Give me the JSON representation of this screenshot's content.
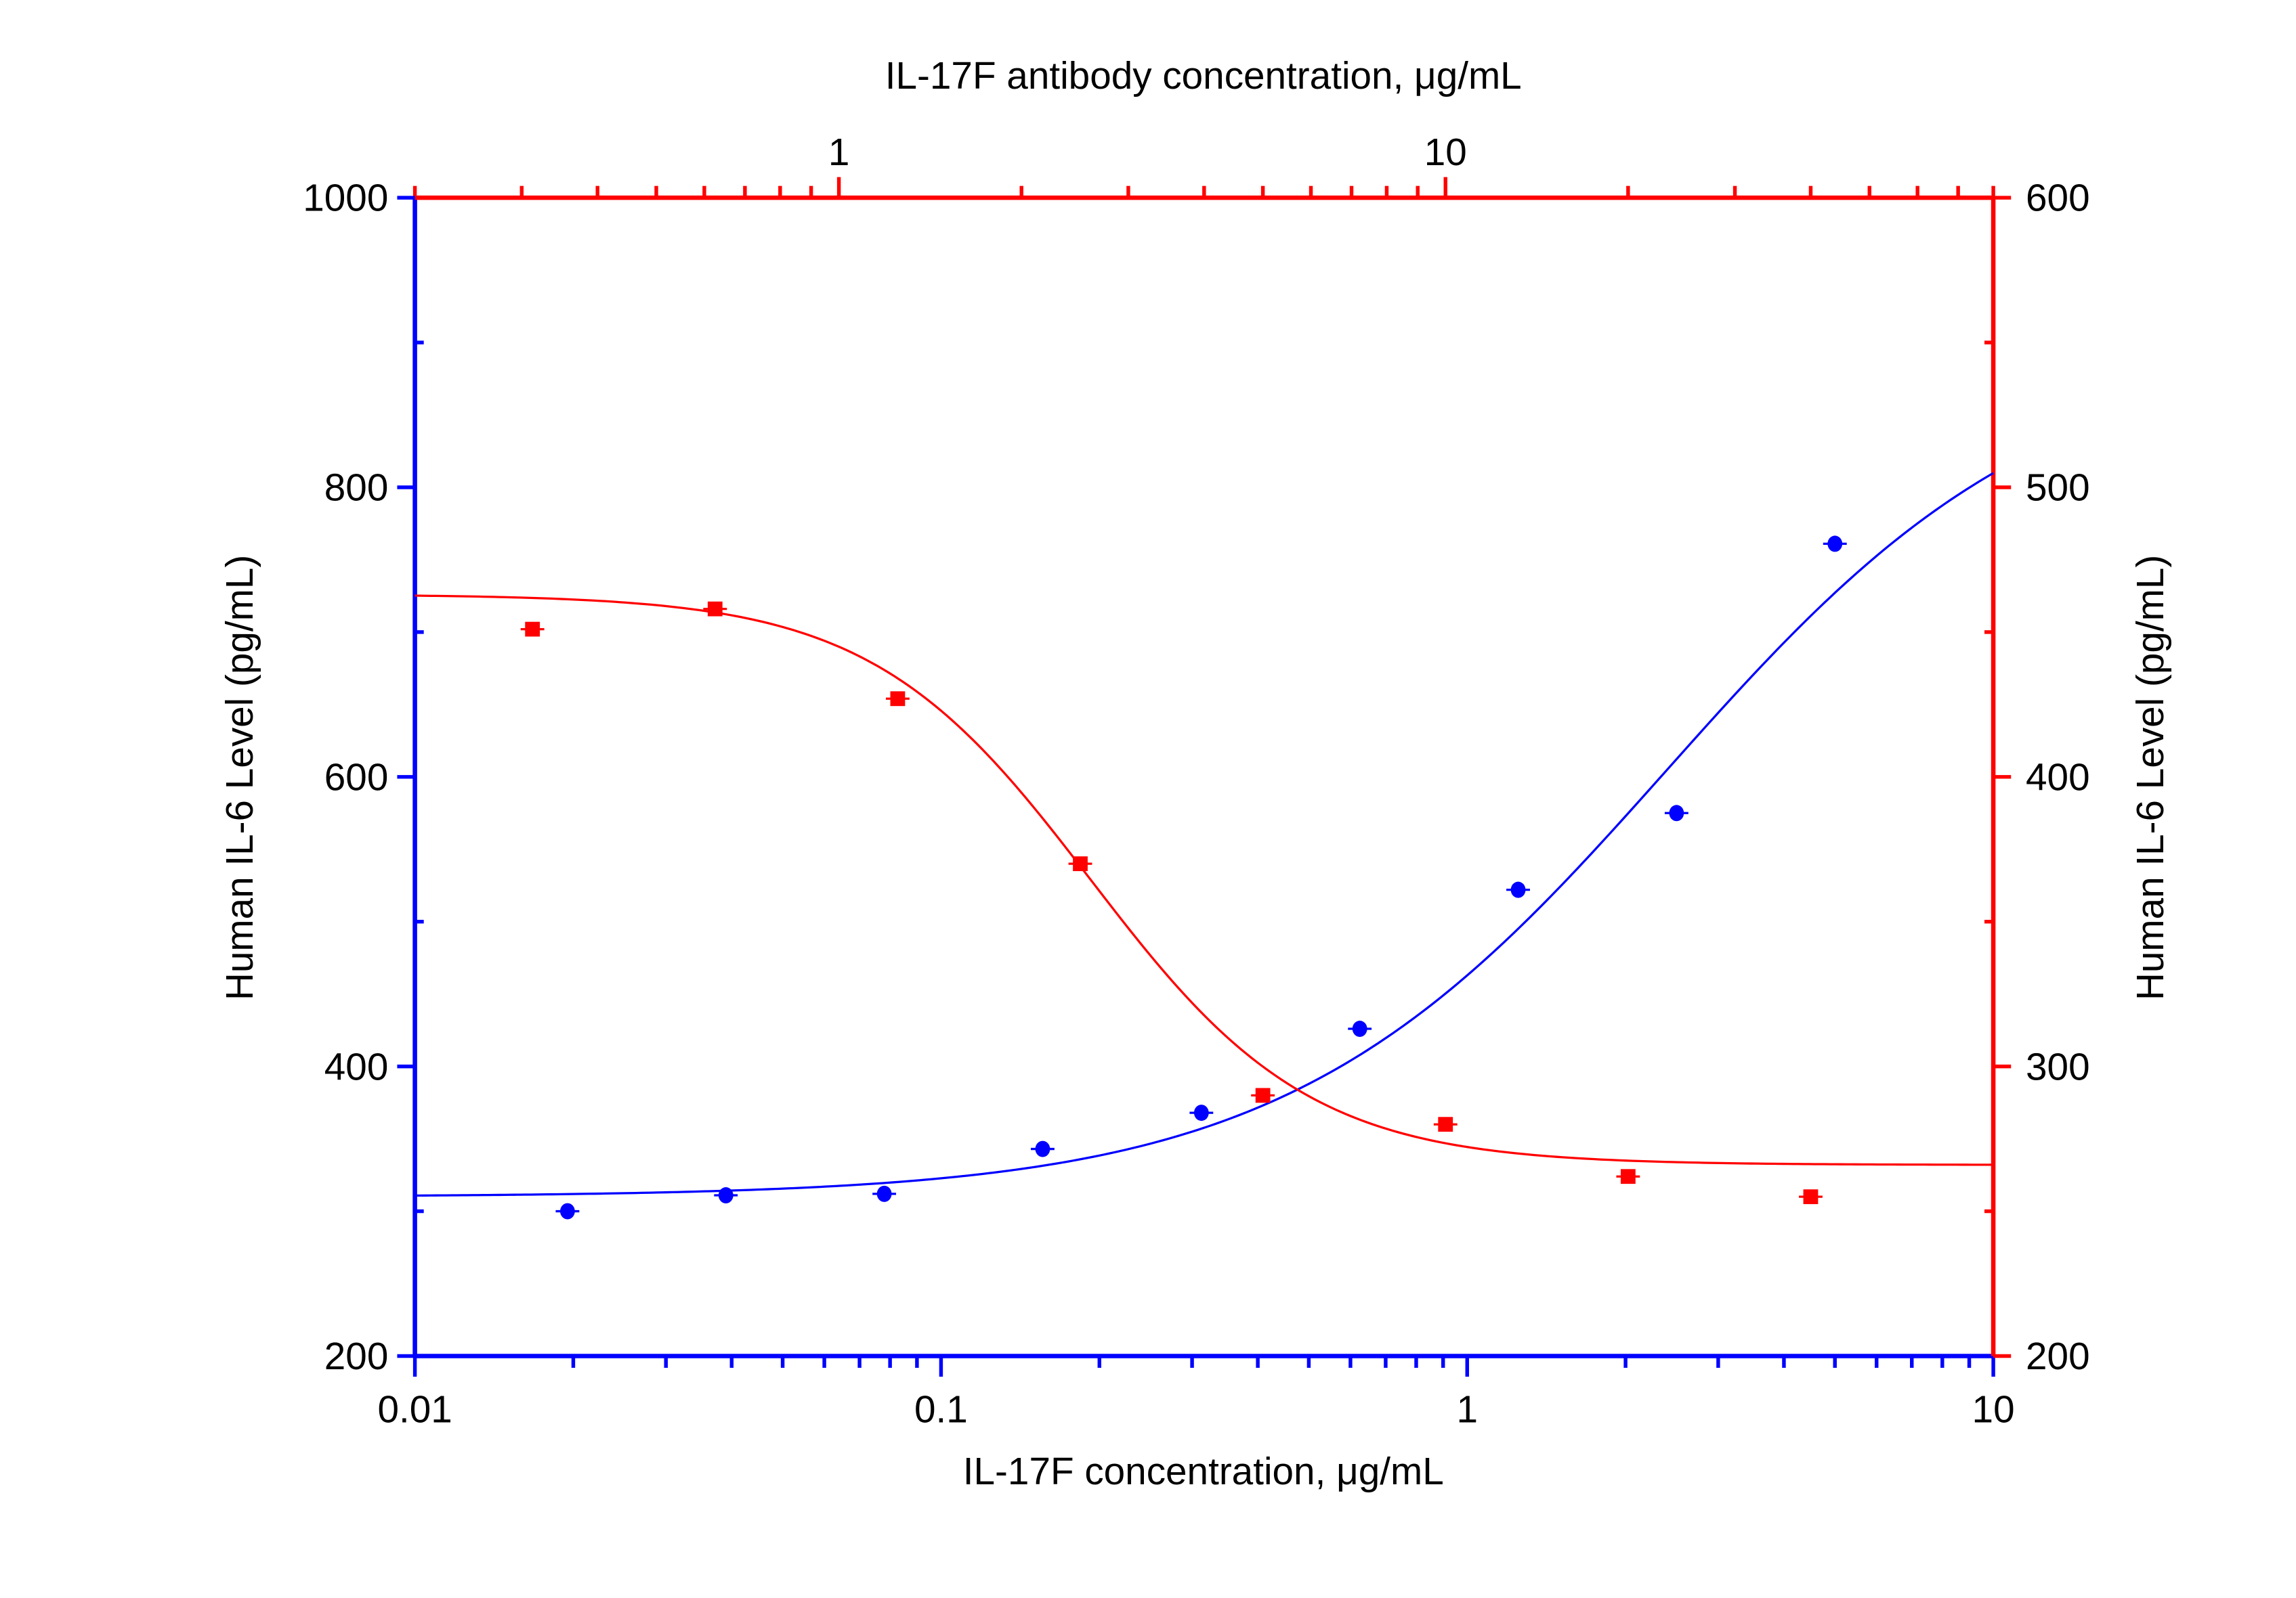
{
  "chart_data": {
    "type": "scatter",
    "title": "",
    "colors": {
      "blue": "#0000ff",
      "red": "#ff0000",
      "text": "#000000"
    },
    "axes": {
      "bottom": {
        "label": "IL-17F concentration, μg/mL",
        "scale": "log",
        "range": [
          0.01,
          10
        ],
        "ticks": [
          "0.01",
          "0.1",
          "1",
          "10"
        ],
        "tick_values": [
          0.01,
          0.1,
          1,
          10
        ]
      },
      "top": {
        "label": "IL-17F antibody concentration, μg/mL",
        "scale": "log",
        "range": [
          0.2,
          80
        ],
        "ticks": [
          "1",
          "10"
        ],
        "tick_values": [
          1,
          10
        ]
      },
      "left": {
        "label": "Human IL-6 Level (pg/mL)",
        "scale": "linear",
        "range": [
          200,
          1000
        ],
        "ticks": [
          "200",
          "400",
          "600",
          "800",
          "1000"
        ],
        "tick_values": [
          200,
          400,
          600,
          800,
          1000
        ]
      },
      "right": {
        "label": "Human IL-6 Level (pg/mL)",
        "scale": "linear",
        "range": [
          200,
          600
        ],
        "ticks": [
          "200",
          "300",
          "400",
          "500",
          "600"
        ],
        "tick_values": [
          200,
          300,
          400,
          500,
          600
        ]
      }
    },
    "grid": false,
    "series": [
      {
        "name": "IL-17F (blue, bottom/left axes)",
        "color": "#0000ff",
        "marker": "circle",
        "x": [
          0.0195,
          0.039,
          0.078,
          0.156,
          0.3125,
          0.625,
          1.25,
          2.5,
          5
        ],
        "y": [
          300,
          311,
          312,
          343,
          368,
          426,
          522,
          575,
          761
        ],
        "fit": {
          "model": "4PL",
          "bottom": 310,
          "top": 900,
          "ec50": 2.4,
          "hill": 1.2
        }
      },
      {
        "name": "IL-17F antibody (red, top/right axes)",
        "color": "#ff0000",
        "marker": "square",
        "x": [
          0.3125,
          0.625,
          1.25,
          2.5,
          5,
          10,
          20,
          40
        ],
        "y": [
          451,
          458,
          427,
          370,
          290,
          280,
          262,
          255
        ],
        "fit": {
          "model": "4PL",
          "bottom": 266,
          "top": 463,
          "ec50": 2.6,
          "hill": 2.4
        }
      }
    ]
  }
}
